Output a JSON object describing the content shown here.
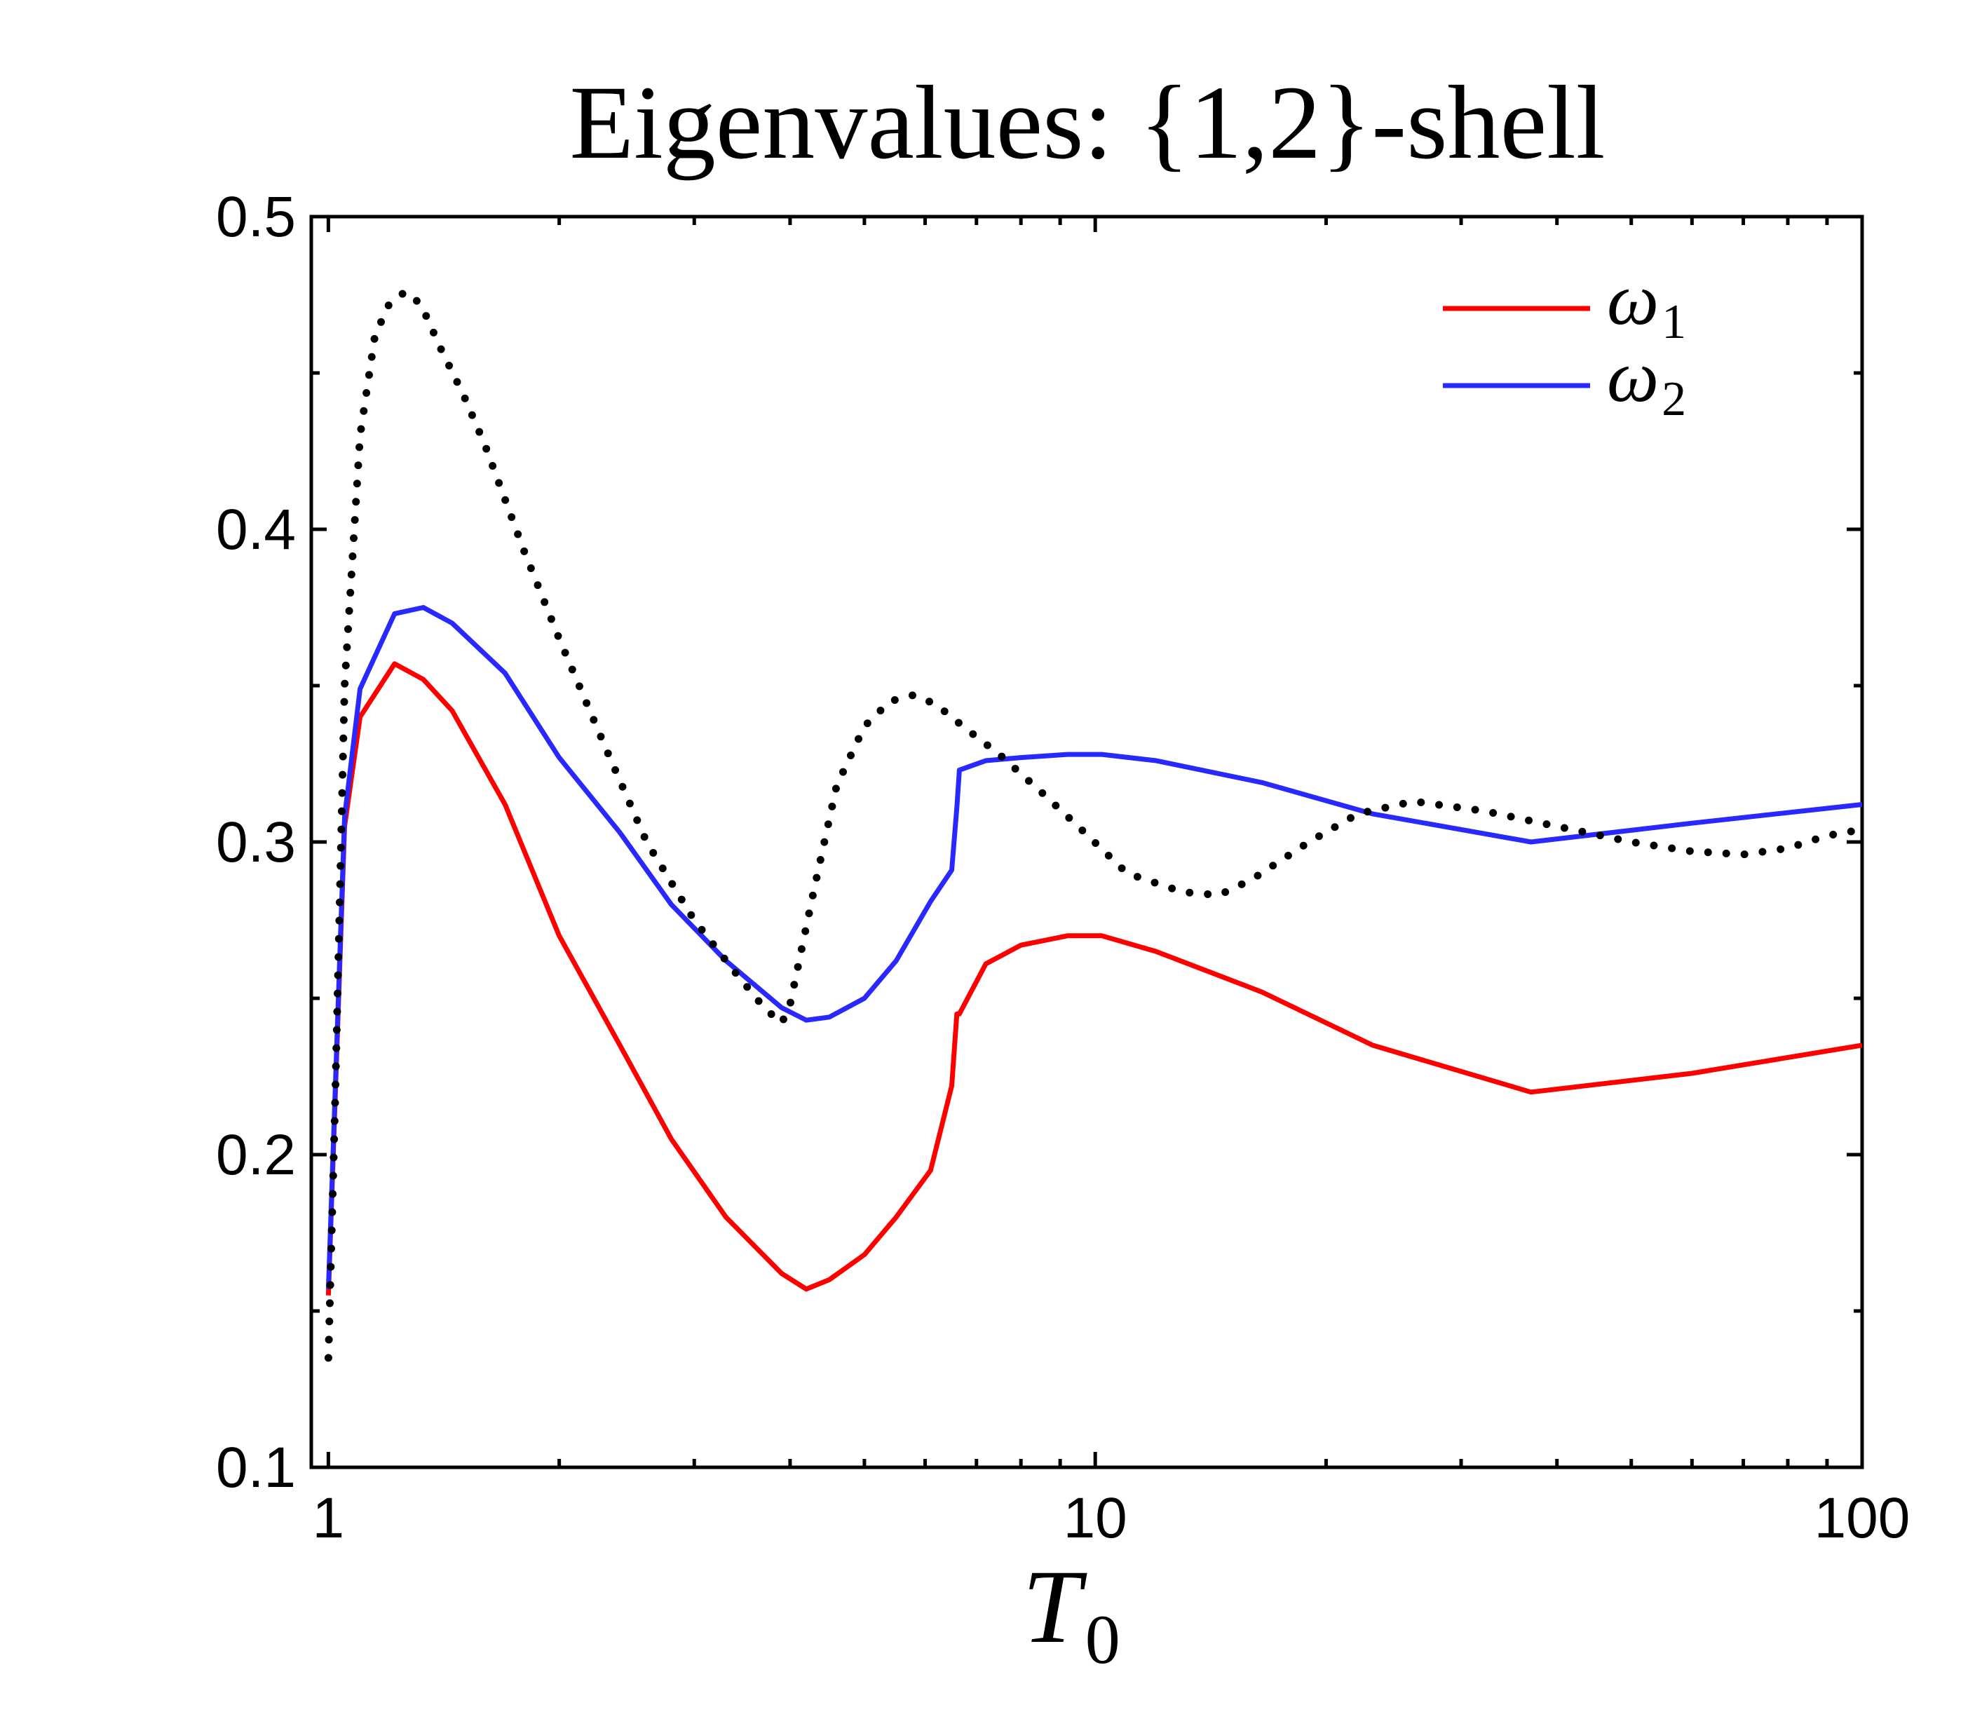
{
  "chart_data": {
    "type": "line",
    "title": "Eigenvalues:  {1,2}-shell",
    "xlabel": "T",
    "xlabel_subscript": "0",
    "ylabel": "",
    "xscale": "log",
    "xlim": [
      0.95,
      100
    ],
    "ylim": [
      0.1,
      0.5
    ],
    "xticks": [
      {
        "value": 1,
        "label": "1"
      },
      {
        "value": 10,
        "label": "10"
      },
      {
        "value": 100,
        "label": "100"
      }
    ],
    "yticks": [
      {
        "value": 0.1,
        "label": "0.1"
      },
      {
        "value": 0.2,
        "label": "0.2"
      },
      {
        "value": 0.3,
        "label": "0.3"
      },
      {
        "value": 0.4,
        "label": "0.4"
      },
      {
        "value": 0.5,
        "label": "0.5"
      }
    ],
    "legend_position": "top-right",
    "series": [
      {
        "name": "ω",
        "name_subscript": "1",
        "color": "#ff0000",
        "style": "solid",
        "in_legend": true,
        "x": [
          1.0,
          1.05,
          1.1,
          1.22,
          1.33,
          1.45,
          1.7,
          2.0,
          2.4,
          2.8,
          3.3,
          3.9,
          4.2,
          4.5,
          5.0,
          5.5,
          6.1,
          6.5,
          6.6,
          6.65,
          7.2,
          8.0,
          9.2,
          10.2,
          12.0,
          16.5,
          23.0,
          37.0,
          60.0,
          100.0
        ],
        "y": [
          0.155,
          0.305,
          0.34,
          0.357,
          0.352,
          0.342,
          0.312,
          0.27,
          0.235,
          0.205,
          0.18,
          0.162,
          0.157,
          0.16,
          0.168,
          0.18,
          0.195,
          0.222,
          0.245,
          0.245,
          0.261,
          0.267,
          0.27,
          0.27,
          0.265,
          0.252,
          0.235,
          0.22,
          0.226,
          0.235
        ]
      },
      {
        "name": "ω",
        "name_subscript": "2",
        "color": "#2828ff",
        "style": "solid",
        "in_legend": true,
        "x": [
          1.0,
          1.05,
          1.1,
          1.22,
          1.33,
          1.45,
          1.7,
          2.0,
          2.4,
          2.8,
          3.3,
          3.9,
          4.2,
          4.5,
          5.0,
          5.5,
          6.1,
          6.5,
          6.6,
          6.65,
          7.2,
          8.0,
          9.2,
          10.2,
          12.0,
          16.5,
          23.0,
          37.0,
          60.0,
          100.0
        ],
        "y": [
          0.157,
          0.308,
          0.349,
          0.373,
          0.375,
          0.37,
          0.354,
          0.327,
          0.303,
          0.28,
          0.262,
          0.247,
          0.243,
          0.244,
          0.25,
          0.262,
          0.281,
          0.291,
          0.311,
          0.323,
          0.326,
          0.327,
          0.328,
          0.328,
          0.326,
          0.319,
          0.309,
          0.3,
          0.306,
          0.312
        ]
      },
      {
        "name": "",
        "color": "#000000",
        "style": "dotted",
        "in_legend": false,
        "x": [
          1.0,
          1.02,
          1.05,
          1.1,
          1.15,
          1.2,
          1.26,
          1.32,
          1.4,
          1.5,
          1.6,
          1.8,
          2.0,
          2.3,
          2.6,
          3.0,
          3.4,
          3.7,
          3.9,
          4.0,
          4.3,
          4.6,
          5.0,
          5.4,
          5.8,
          6.2,
          6.8,
          7.5,
          8.5,
          9.5,
          11.0,
          13.0,
          14.5,
          16.0,
          19.0,
          22.0,
          26.0,
          32.0,
          40.0,
          50.0,
          60.0,
          70.0,
          80.0,
          90.0,
          100.0
        ],
        "y": [
          0.135,
          0.215,
          0.35,
          0.43,
          0.462,
          0.472,
          0.476,
          0.472,
          0.458,
          0.443,
          0.427,
          0.393,
          0.365,
          0.33,
          0.3,
          0.275,
          0.258,
          0.247,
          0.242,
          0.248,
          0.285,
          0.318,
          0.337,
          0.345,
          0.347,
          0.344,
          0.336,
          0.328,
          0.316,
          0.305,
          0.29,
          0.284,
          0.283,
          0.288,
          0.3,
          0.309,
          0.313,
          0.31,
          0.305,
          0.3,
          0.297,
          0.296,
          0.298,
          0.302,
          0.304
        ]
      }
    ]
  }
}
